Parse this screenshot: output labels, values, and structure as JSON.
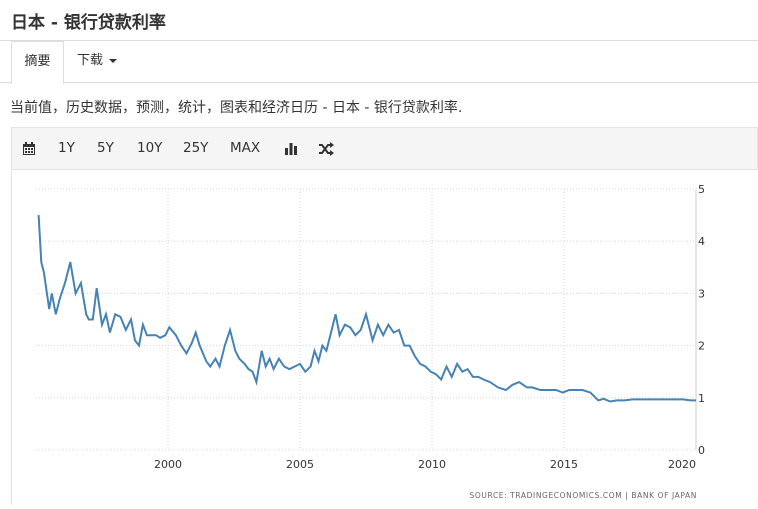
{
  "header": {
    "title": "日本 - 银行贷款利率"
  },
  "tabs": [
    {
      "label": "摘要"
    },
    {
      "label": "下载"
    }
  ],
  "description": "当前值，历史数据，预测，统计，图表和经济日历 - 日本 - 银行贷款利率.",
  "toolbar": {
    "ranges": [
      "1Y",
      "5Y",
      "10Y",
      "25Y",
      "MAX"
    ],
    "icons": [
      "calendar-icon",
      "bar-chart-icon",
      "shuffle-icon"
    ]
  },
  "chart_data": {
    "type": "line",
    "title": "",
    "xlabel": "",
    "ylabel": "",
    "xlim": [
      1995,
      2020
    ],
    "ylim": [
      0,
      5
    ],
    "x_ticks": [
      "2000",
      "2005",
      "2010",
      "2015",
      "2020"
    ],
    "y_ticks": [
      "0",
      "1",
      "2",
      "3",
      "4",
      "5"
    ],
    "grid": true,
    "line_color": "#4682b4",
    "source": "SOURCE: TRADINGECONOMICS.COM  |  BANK OF JAPAN",
    "series": [
      {
        "name": "",
        "x": [
          1995.1,
          1995.2,
          1995.3,
          1995.5,
          1995.6,
          1995.75,
          1995.9,
          1996.1,
          1996.3,
          1996.5,
          1996.7,
          1996.9,
          1997.0,
          1997.15,
          1997.3,
          1997.5,
          1997.65,
          1997.8,
          1998.0,
          1998.2,
          1998.4,
          1998.6,
          1998.75,
          1998.9,
          1999.05,
          1999.2,
          1999.35,
          1999.55,
          1999.7,
          1999.9,
          2000.05,
          2000.3,
          2000.5,
          2000.7,
          2000.9,
          2001.05,
          2001.2,
          2001.45,
          2001.6,
          2001.8,
          2001.95,
          2002.15,
          2002.35,
          2002.55,
          2002.7,
          2002.9,
          2003.05,
          2003.2,
          2003.35,
          2003.55,
          2003.7,
          2003.85,
          2004.0,
          2004.2,
          2004.4,
          2004.6,
          2004.8,
          2005.0,
          2005.2,
          2005.4,
          2005.55,
          2005.7,
          2005.85,
          2006.0,
          2006.2,
          2006.35,
          2006.5,
          2006.7,
          2006.9,
          2007.1,
          2007.3,
          2007.5,
          2007.75,
          2007.95,
          2008.15,
          2008.35,
          2008.55,
          2008.75,
          2008.95,
          2009.15,
          2009.35,
          2009.55,
          2009.75,
          2009.95,
          2010.15,
          2010.35,
          2010.55,
          2010.75,
          2010.95,
          2011.15,
          2011.35,
          2011.55,
          2011.75,
          2011.95,
          2012.2,
          2012.5,
          2012.8,
          2013.05,
          2013.3,
          2013.6,
          2013.8,
          2014.1,
          2014.4,
          2014.7,
          2014.95,
          2015.2,
          2015.45,
          2015.7,
          2016.0,
          2016.3,
          2016.5,
          2016.75,
          2017.0,
          2017.3,
          2017.6,
          2017.9,
          2018.3,
          2018.7,
          2019.1,
          2019.5,
          2019.8,
          2020.0
        ],
        "y": [
          4.5,
          3.6,
          3.4,
          2.7,
          3.0,
          2.6,
          2.9,
          3.2,
          3.6,
          3.0,
          3.2,
          2.6,
          2.5,
          2.5,
          3.1,
          2.4,
          2.6,
          2.25,
          2.6,
          2.55,
          2.3,
          2.5,
          2.1,
          2.0,
          2.4,
          2.2,
          2.2,
          2.2,
          2.15,
          2.2,
          2.35,
          2.2,
          2.0,
          1.85,
          2.05,
          2.25,
          2.0,
          1.7,
          1.6,
          1.75,
          1.6,
          2.0,
          2.3,
          1.9,
          1.75,
          1.65,
          1.55,
          1.5,
          1.3,
          1.9,
          1.6,
          1.75,
          1.55,
          1.75,
          1.6,
          1.55,
          1.6,
          1.65,
          1.5,
          1.6,
          1.9,
          1.7,
          2.0,
          1.9,
          2.3,
          2.6,
          2.2,
          2.4,
          2.35,
          2.2,
          2.3,
          2.6,
          2.1,
          2.4,
          2.2,
          2.4,
          2.25,
          2.3,
          2.0,
          2.0,
          1.8,
          1.65,
          1.6,
          1.5,
          1.45,
          1.35,
          1.6,
          1.4,
          1.65,
          1.5,
          1.55,
          1.4,
          1.4,
          1.35,
          1.3,
          1.2,
          1.15,
          1.25,
          1.3,
          1.2,
          1.2,
          1.15,
          1.15,
          1.15,
          1.1,
          1.15,
          1.15,
          1.15,
          1.1,
          0.95,
          0.98,
          0.93,
          0.95,
          0.95,
          0.97,
          0.97,
          0.97,
          0.97,
          0.97,
          0.97,
          0.95,
          0.95
        ]
      }
    ]
  }
}
